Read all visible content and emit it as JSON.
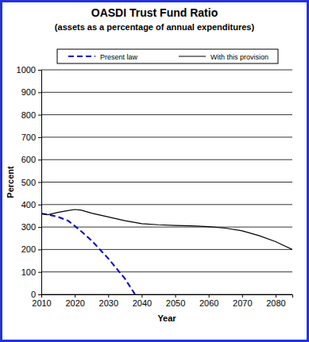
{
  "chart_data": {
    "type": "line",
    "title": "OASDI Trust Fund Ratio",
    "subtitle": "(assets as a percentage of annual expenditures)",
    "x_label": "Year",
    "y_label": "Percent",
    "x": [
      2010,
      2012,
      2015,
      2018,
      2020,
      2022,
      2025,
      2030,
      2035,
      2038,
      2040,
      2045,
      2050,
      2055,
      2060,
      2065,
      2070,
      2075,
      2080,
      2085
    ],
    "series": [
      {
        "name": "Present law",
        "color": "#0000cc",
        "line_style": "dashed",
        "values": [
          360,
          355,
          345,
          328,
          305,
          280,
          240,
          160,
          70,
          0,
          null,
          null,
          null,
          null,
          null,
          null,
          null,
          null,
          null,
          null
        ]
      },
      {
        "name": "With this provision",
        "color": "#000000",
        "line_style": "solid",
        "values": [
          360,
          355,
          365,
          373,
          378,
          375,
          362,
          345,
          328,
          320,
          315,
          310,
          307,
          305,
          302,
          295,
          283,
          262,
          235,
          200
        ]
      }
    ],
    "xlim": [
      2010,
      2085
    ],
    "xticks": [
      2010,
      2020,
      2030,
      2040,
      2050,
      2060,
      2070,
      2080
    ],
    "ylim": [
      0,
      1000
    ],
    "yticks": [
      0,
      100,
      200,
      300,
      400,
      500,
      600,
      700,
      800,
      900,
      1000
    ],
    "grid": true,
    "legend": "top"
  }
}
